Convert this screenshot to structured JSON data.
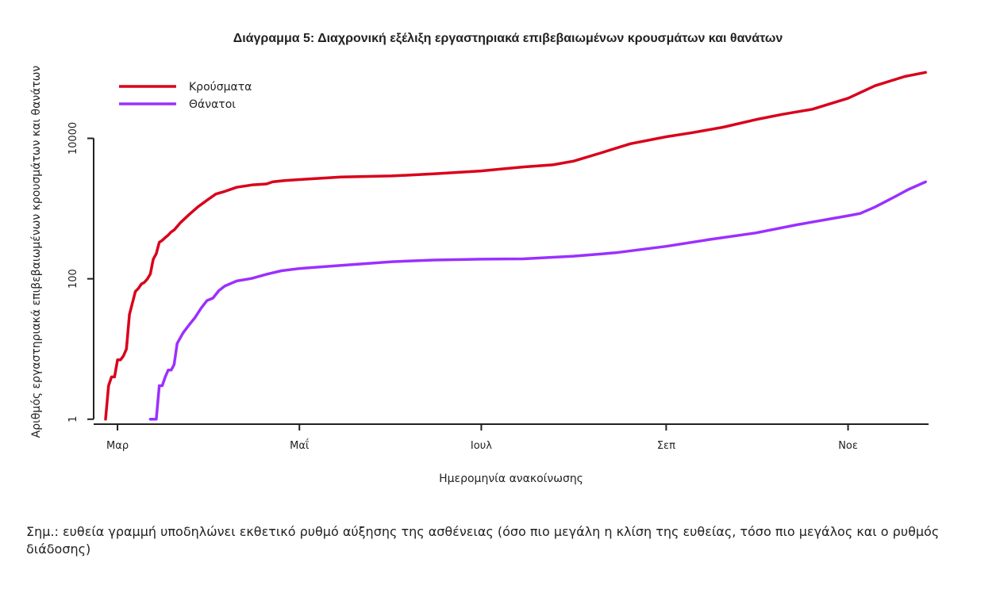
{
  "chart_data": {
    "type": "line",
    "title": "Διάγραμμα 5: Διαχρονική εξέλιξη εργαστηριακά επιβεβαιωμένων κρουσμάτων και θανάτων",
    "xlabel": "Ημερομηνία ανακοίνωσης",
    "ylabel": "Αριθμός εργαστηριακά επιβεβαιωμένων κρουσμάτων και θανάτων",
    "y_scale": "log",
    "ylim": [
      0.85,
      90000
    ],
    "y_ticks": [
      {
        "value": 1,
        "label": "1"
      },
      {
        "value": 100,
        "label": "100"
      },
      {
        "value": 10000,
        "label": "10000"
      }
    ],
    "xlim": [
      "2020-02-22",
      "2020-11-28"
    ],
    "x_ticks": [
      {
        "date": "2020-03-01",
        "label": "Μαρ"
      },
      {
        "date": "2020-05-01",
        "label": "Μαΐ"
      },
      {
        "date": "2020-07-01",
        "label": "Ιουλ"
      },
      {
        "date": "2020-09-01",
        "label": "Σεπ"
      },
      {
        "date": "2020-11-01",
        "label": "Νοε"
      }
    ],
    "legend_position": "top-left",
    "grid": false,
    "series": [
      {
        "name": "Κρούσματα",
        "color": "#d9001b",
        "points": [
          [
            "2020-02-26",
            1
          ],
          [
            "2020-02-27",
            3
          ],
          [
            "2020-02-28",
            4
          ],
          [
            "2020-02-29",
            4
          ],
          [
            "2020-03-01",
            7
          ],
          [
            "2020-03-02",
            7
          ],
          [
            "2020-03-03",
            8
          ],
          [
            "2020-03-04",
            10
          ],
          [
            "2020-03-05",
            31
          ],
          [
            "2020-03-06",
            45
          ],
          [
            "2020-03-07",
            66
          ],
          [
            "2020-03-08",
            73
          ],
          [
            "2020-03-09",
            84
          ],
          [
            "2020-03-10",
            89
          ],
          [
            "2020-03-11",
            99
          ],
          [
            "2020-03-12",
            117
          ],
          [
            "2020-03-13",
            190
          ],
          [
            "2020-03-14",
            228
          ],
          [
            "2020-03-15",
            331
          ],
          [
            "2020-03-16",
            352
          ],
          [
            "2020-03-17",
            387
          ],
          [
            "2020-03-18",
            418
          ],
          [
            "2020-03-19",
            464
          ],
          [
            "2020-03-20",
            495
          ],
          [
            "2020-03-22",
            624
          ],
          [
            "2020-03-25",
            821
          ],
          [
            "2020-03-28",
            1061
          ],
          [
            "2020-03-31",
            1314
          ],
          [
            "2020-04-03",
            1613
          ],
          [
            "2020-04-06",
            1755
          ],
          [
            "2020-04-10",
            2011
          ],
          [
            "2020-04-15",
            2170
          ],
          [
            "2020-04-20",
            2245
          ],
          [
            "2020-04-22",
            2401
          ],
          [
            "2020-04-26",
            2506
          ],
          [
            "2020-05-01",
            2591
          ],
          [
            "2020-05-15",
            2810
          ],
          [
            "2020-06-01",
            2918
          ],
          [
            "2020-06-15",
            3121
          ],
          [
            "2020-07-01",
            3432
          ],
          [
            "2020-07-15",
            3910
          ],
          [
            "2020-07-25",
            4193
          ],
          [
            "2020-08-01",
            4737
          ],
          [
            "2020-08-10",
            6177
          ],
          [
            "2020-08-20",
            8381
          ],
          [
            "2020-09-01",
            10524
          ],
          [
            "2020-09-10",
            12080
          ],
          [
            "2020-09-20",
            14400
          ],
          [
            "2020-10-01",
            18475
          ],
          [
            "2020-10-10",
            22000
          ],
          [
            "2020-10-20",
            26000
          ],
          [
            "2020-11-01",
            37300
          ],
          [
            "2020-11-10",
            56000
          ],
          [
            "2020-11-20",
            76000
          ],
          [
            "2020-11-27",
            87000
          ]
        ]
      },
      {
        "name": "Θάνατοι",
        "color": "#9b30ff",
        "points": [
          [
            "2020-03-12",
            1
          ],
          [
            "2020-03-14",
            1
          ],
          [
            "2020-03-15",
            3
          ],
          [
            "2020-03-16",
            3
          ],
          [
            "2020-03-17",
            4
          ],
          [
            "2020-03-18",
            5
          ],
          [
            "2020-03-19",
            5
          ],
          [
            "2020-03-20",
            6
          ],
          [
            "2020-03-21",
            12
          ],
          [
            "2020-03-23",
            17
          ],
          [
            "2020-03-25",
            22
          ],
          [
            "2020-03-27",
            28
          ],
          [
            "2020-03-29",
            38
          ],
          [
            "2020-03-31",
            49
          ],
          [
            "2020-04-02",
            53
          ],
          [
            "2020-04-04",
            68
          ],
          [
            "2020-04-06",
            79
          ],
          [
            "2020-04-10",
            93
          ],
          [
            "2020-04-15",
            101
          ],
          [
            "2020-04-20",
            116
          ],
          [
            "2020-04-25",
            130
          ],
          [
            "2020-05-01",
            140
          ],
          [
            "2020-05-15",
            155
          ],
          [
            "2020-06-01",
            175
          ],
          [
            "2020-06-15",
            185
          ],
          [
            "2020-07-01",
            190
          ],
          [
            "2020-07-15",
            192
          ],
          [
            "2020-08-01",
            210
          ],
          [
            "2020-08-15",
            235
          ],
          [
            "2020-09-01",
            290
          ],
          [
            "2020-09-15",
            360
          ],
          [
            "2020-10-01",
            450
          ],
          [
            "2020-10-15",
            590
          ],
          [
            "2020-11-01",
            790
          ],
          [
            "2020-11-05",
            850
          ],
          [
            "2020-11-10",
            1050
          ],
          [
            "2020-11-17",
            1500
          ],
          [
            "2020-11-21",
            1850
          ],
          [
            "2020-11-27",
            2400
          ]
        ]
      }
    ]
  },
  "note": "Σημ.: ευθεία γραμμή υποδηλώνει εκθετικό ρυθμό αύξησης της ασθένειας (όσο πιο μεγάλη η κλίση της ευθείας, τόσο πιο μεγάλος και ο ρυθμός διάδοσης)"
}
